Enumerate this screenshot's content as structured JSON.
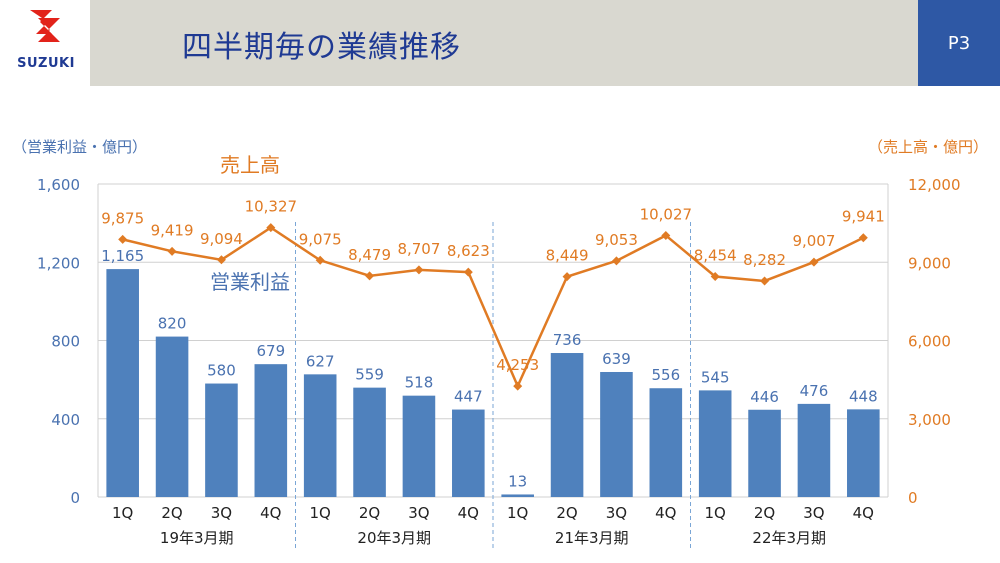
{
  "header": {
    "title": "四半期毎の業績推移",
    "page": "P3",
    "brand": "SUZUKI"
  },
  "colors": {
    "bar": "#4f81bd",
    "line": "#e07b24",
    "left_axis_text": "#4a72b0",
    "right_axis_text": "#e07b24",
    "header_bg": "#d9d8d0",
    "page_bg": "#2e58a5",
    "title": "#1f3a93",
    "logo_red": "#e2231a"
  },
  "icons": {
    "logo": "suzuki-s-logo-icon"
  },
  "chart_data": {
    "type": "bar+line",
    "categories": [
      "1Q",
      "2Q",
      "3Q",
      "4Q",
      "1Q",
      "2Q",
      "3Q",
      "4Q",
      "1Q",
      "2Q",
      "3Q",
      "4Q",
      "1Q",
      "2Q",
      "3Q",
      "4Q"
    ],
    "groups": [
      {
        "label": "19年3月期",
        "start": 0,
        "end": 3
      },
      {
        "label": "20年3月期",
        "start": 4,
        "end": 7
      },
      {
        "label": "21年3月期",
        "start": 8,
        "end": 11
      },
      {
        "label": "22年3月期",
        "start": 12,
        "end": 15
      }
    ],
    "series": [
      {
        "name": "営業利益",
        "type": "bar",
        "axis": "left",
        "values": [
          1165,
          820,
          580,
          679,
          627,
          559,
          518,
          447,
          13,
          736,
          639,
          556,
          545,
          446,
          476,
          448
        ],
        "labels": [
          "1,165",
          "820",
          "580",
          "679",
          "627",
          "559",
          "518",
          "447",
          "13",
          "736",
          "639",
          "556",
          "545",
          "446",
          "476",
          "448"
        ]
      },
      {
        "name": "売上高",
        "type": "line",
        "axis": "right",
        "values": [
          9875,
          9419,
          9094,
          10327,
          9075,
          8479,
          8707,
          8623,
          4253,
          8449,
          9053,
          10027,
          8454,
          8282,
          9007,
          9941
        ],
        "labels": [
          "9,875",
          "9,419",
          "9,094",
          "10,327",
          "9,075",
          "8,479",
          "8,707",
          "8,623",
          "4,253",
          "8,449",
          "9,053",
          "10,027",
          "8,454",
          "8,282",
          "9,007",
          "9,941"
        ]
      }
    ],
    "left_axis": {
      "label": "（営業利益・億円）",
      "range": [
        0,
        1600
      ],
      "ticks": [
        0,
        400,
        800,
        1200,
        1600
      ],
      "tick_labels": [
        "0",
        "400",
        "800",
        "1,200",
        "1,600"
      ]
    },
    "right_axis": {
      "label": "（売上高・億円）",
      "range": [
        0,
        12000
      ],
      "ticks": [
        0,
        3000,
        6000,
        9000,
        12000
      ],
      "tick_labels": [
        "0",
        "3,000",
        "6,000",
        "9,000",
        "12,000"
      ]
    },
    "grid": true
  }
}
